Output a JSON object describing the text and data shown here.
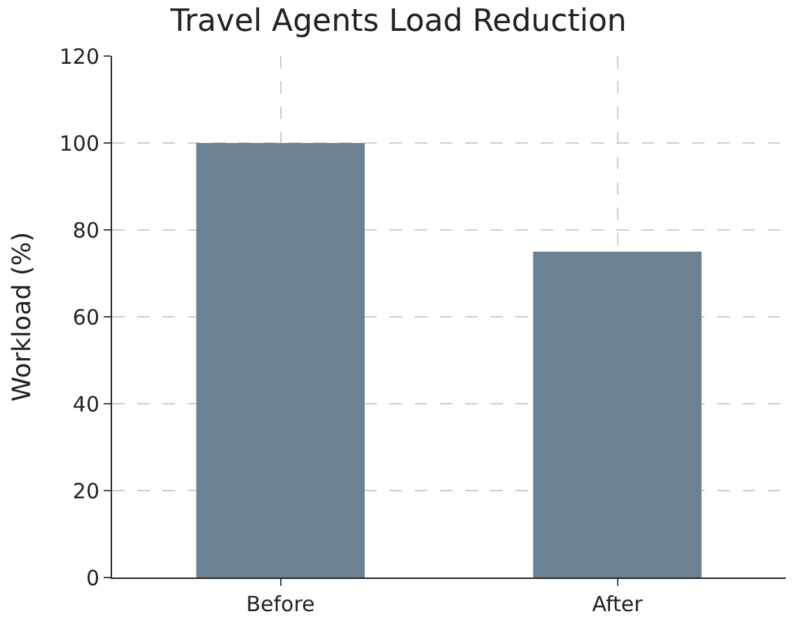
{
  "chart_data": {
    "type": "bar",
    "title": "Travel Agents Load Reduction",
    "ylabel": "Workload (%)",
    "categories": [
      "Before",
      "After"
    ],
    "values": [
      100,
      75
    ],
    "color": "#6a8294",
    "ylim": [
      0,
      120
    ],
    "yticks": [
      0,
      20,
      40,
      60,
      80,
      100,
      120
    ],
    "grid": true,
    "legend": false
  }
}
